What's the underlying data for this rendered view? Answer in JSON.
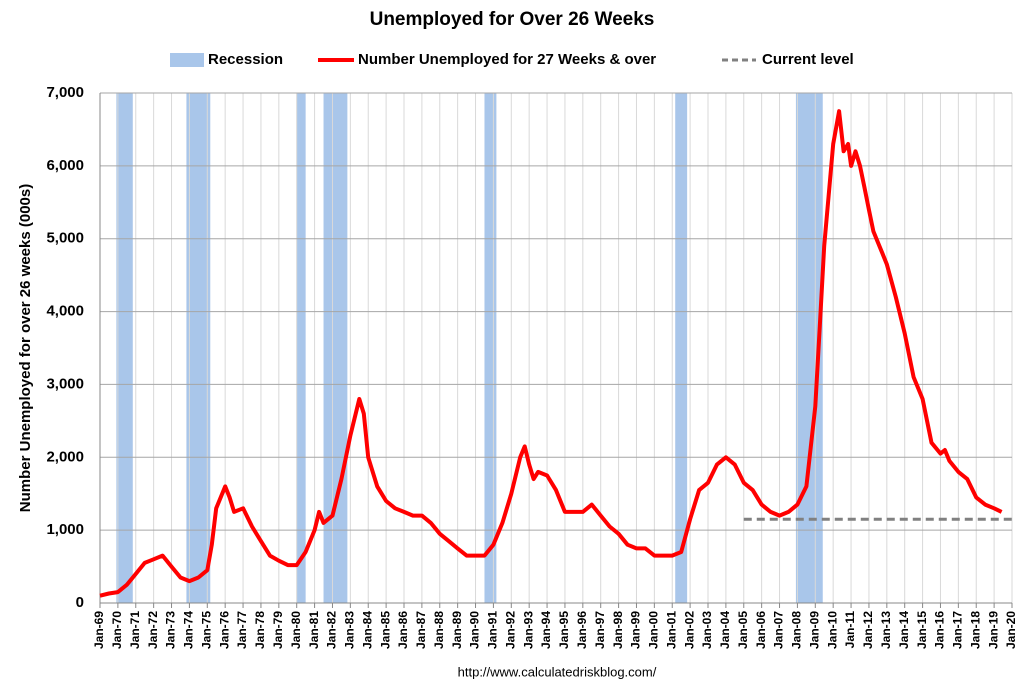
{
  "chart_data": {
    "type": "line",
    "title": "Unemployed for Over 26 Weeks",
    "y_label": "Number Unemployed for over 26 weeks (000s)",
    "source": "http://www.calculatedriskblog.com/",
    "xlim": [
      "Jan-69",
      "Jan-20"
    ],
    "xticks": [
      "Jan-69",
      "Jan-70",
      "Jan-71",
      "Jan-72",
      "Jan-73",
      "Jan-74",
      "Jan-75",
      "Jan-76",
      "Jan-77",
      "Jan-78",
      "Jan-79",
      "Jan-80",
      "Jan-81",
      "Jan-82",
      "Jan-83",
      "Jan-84",
      "Jan-85",
      "Jan-86",
      "Jan-87",
      "Jan-88",
      "Jan-89",
      "Jan-90",
      "Jan-91",
      "Jan-92",
      "Jan-93",
      "Jan-94",
      "Jan-95",
      "Jan-96",
      "Jan-97",
      "Jan-98",
      "Jan-99",
      "Jan-00",
      "Jan-01",
      "Jan-02",
      "Jan-03",
      "Jan-04",
      "Jan-05",
      "Jan-06",
      "Jan-07",
      "Jan-08",
      "Jan-09",
      "Jan-10",
      "Jan-11",
      "Jan-12",
      "Jan-13",
      "Jan-14",
      "Jan-15",
      "Jan-16",
      "Jan-17",
      "Jan-18",
      "Jan-19",
      "Jan-20"
    ],
    "ylim": [
      0,
      7000
    ],
    "yticks": [
      0,
      {
        "value": 1000,
        "label": "1,000"
      },
      {
        "value": 2000,
        "label": "2,000"
      },
      {
        "value": 3000,
        "label": "3,000"
      },
      {
        "value": 4000,
        "label": "4,000"
      },
      {
        "value": 5000,
        "label": "5,000"
      },
      {
        "value": 6000,
        "label": "6,000"
      },
      {
        "value": 7000,
        "label": "7,000"
      }
    ],
    "grid": true,
    "recessions": {
      "name": "Recession",
      "color": "#a9c6ea",
      "periods": [
        [
          "Dec-69",
          "Nov-70"
        ],
        [
          "Nov-73",
          "Mar-75"
        ],
        [
          "Jan-80",
          "Jul-80"
        ],
        [
          "Jul-81",
          "Nov-82"
        ],
        [
          "Jul-90",
          "Mar-91"
        ],
        [
          "Mar-01",
          "Nov-01"
        ],
        [
          "Dec-07",
          "Jun-09"
        ]
      ]
    },
    "series": [
      {
        "name": "Number Unemployed for 27 Weeks & over",
        "color": "#ff0000",
        "x": [
          "Jan-69",
          "Jul-69",
          "Jan-70",
          "Jul-70",
          "Jan-71",
          "Jul-71",
          "Jan-72",
          "Jul-72",
          "Jan-73",
          "Jul-73",
          "Jan-74",
          "Jul-74",
          "Jan-75",
          "Apr-75",
          "Jul-75",
          "Oct-75",
          "Jan-76",
          "Apr-76",
          "Jul-76",
          "Jan-77",
          "Jul-77",
          "Jan-78",
          "Jul-78",
          "Jan-79",
          "Jul-79",
          "Jan-80",
          "Jul-80",
          "Jan-81",
          "Apr-81",
          "Jul-81",
          "Jan-82",
          "Jul-82",
          "Jan-83",
          "Jul-83",
          "Oct-83",
          "Jan-84",
          "Jul-84",
          "Jan-85",
          "Jul-85",
          "Jan-86",
          "Jul-86",
          "Jan-87",
          "Jul-87",
          "Jan-88",
          "Jul-88",
          "Jan-89",
          "Jul-89",
          "Jan-90",
          "Jul-90",
          "Jan-91",
          "Jul-91",
          "Jan-92",
          "Jul-92",
          "Oct-92",
          "Jan-93",
          "Apr-93",
          "Jul-93",
          "Jan-94",
          "Jul-94",
          "Jan-95",
          "Jul-95",
          "Jan-96",
          "Jul-96",
          "Jan-97",
          "Jul-97",
          "Jan-98",
          "Jul-98",
          "Jan-99",
          "Jul-99",
          "Jan-00",
          "Jul-00",
          "Jan-01",
          "Jul-01",
          "Jan-02",
          "Jul-02",
          "Jan-03",
          "Jul-03",
          "Jan-04",
          "Jul-04",
          "Jan-05",
          "Jul-05",
          "Jan-06",
          "Jul-06",
          "Jan-07",
          "Jul-07",
          "Jan-08",
          "Jul-08",
          "Jan-09",
          "Apr-09",
          "Jul-09",
          "Oct-09",
          "Jan-10",
          "May-10",
          "Aug-10",
          "Nov-10",
          "Jan-11",
          "Apr-11",
          "Jul-11",
          "Oct-11",
          "Jan-12",
          "Apr-12",
          "Jul-12",
          "Oct-12",
          "Jan-13",
          "Jul-13",
          "Jan-14",
          "Jul-14",
          "Jan-15",
          "Jul-15",
          "Jan-16",
          "Apr-16",
          "Jul-16",
          "Jan-17",
          "Jul-17",
          "Jan-18",
          "Jul-18",
          "Jan-19",
          "Jun-19"
        ],
        "values": [
          100,
          130,
          150,
          250,
          400,
          550,
          600,
          650,
          500,
          350,
          300,
          350,
          450,
          800,
          1300,
          1450,
          1600,
          1450,
          1250,
          1300,
          1050,
          850,
          650,
          580,
          520,
          520,
          700,
          1000,
          1250,
          1100,
          1200,
          1700,
          2300,
          2800,
          2600,
          2000,
          1600,
          1400,
          1300,
          1250,
          1200,
          1200,
          1100,
          950,
          850,
          750,
          650,
          650,
          650,
          800,
          1100,
          1500,
          2000,
          2150,
          1900,
          1700,
          1800,
          1750,
          1550,
          1250,
          1250,
          1250,
          1350,
          1200,
          1050,
          950,
          800,
          750,
          750,
          650,
          650,
          650,
          700,
          1150,
          1550,
          1650,
          1900,
          2000,
          1900,
          1650,
          1550,
          1350,
          1250,
          1200,
          1250,
          1350,
          1600,
          2700,
          3800,
          4900,
          5600,
          6300,
          6750,
          6200,
          6300,
          6000,
          6200,
          6000,
          5700,
          5400,
          5100,
          4950,
          4800,
          4650,
          4200,
          3700,
          3100,
          2800,
          2200,
          2050,
          2100,
          1950,
          1800,
          1700,
          1450,
          1350,
          1300,
          1250
        ]
      }
    ],
    "current_level": {
      "name": "Current level",
      "color": "#808080",
      "value": 1150,
      "x": [
        "Jan-05",
        "Jan-20"
      ]
    }
  }
}
